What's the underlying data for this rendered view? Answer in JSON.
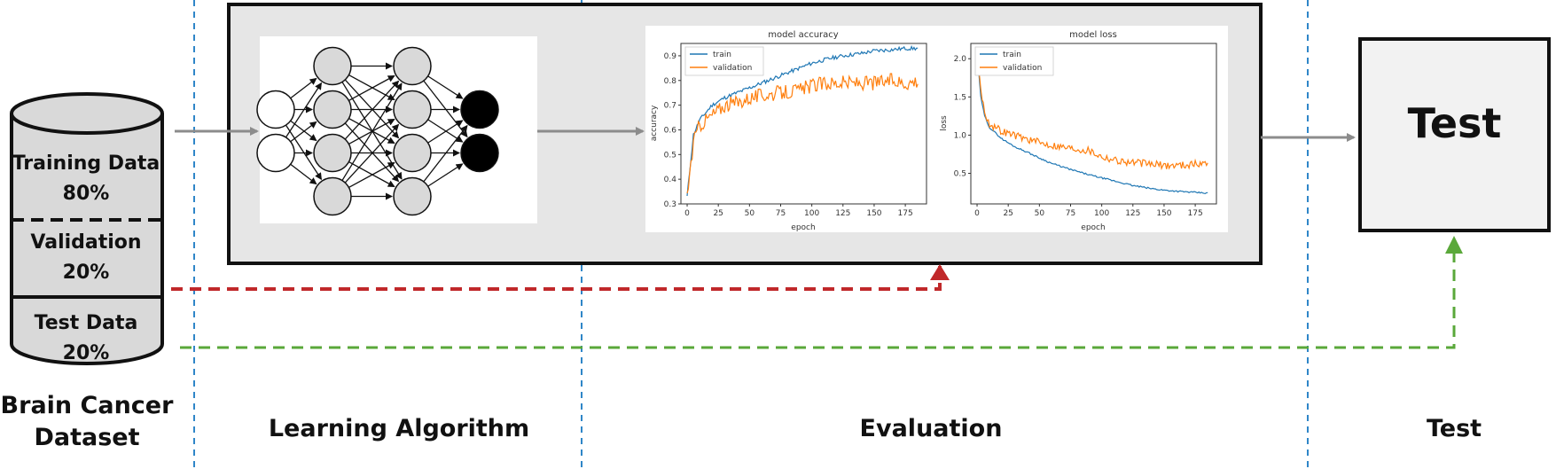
{
  "dataset": {
    "segments": [
      {
        "name": "Training Data",
        "pct": "80%"
      },
      {
        "name": "Validation",
        "pct": "20%"
      },
      {
        "name": "Test Data",
        "pct": "20%"
      }
    ],
    "caption_line1": "Brain Cancer",
    "caption_line2": "Dataset"
  },
  "stages": {
    "learning": "Learning Algorithm",
    "evaluation": "Evaluation",
    "test": "Test"
  },
  "test_box": {
    "title": "Test"
  },
  "colors": {
    "flow_arrow": "#8c8c8c",
    "validation_path": "#c0282a",
    "test_path": "#5aa83a",
    "stage_divider": "#2f86c8",
    "train_series": "#1f77b4",
    "validation_series": "#ff7f0e"
  },
  "network": {
    "layers": [
      2,
      4,
      4,
      2
    ]
  },
  "chart_data": [
    {
      "type": "line",
      "title": "model accuracy",
      "xlabel": "epoch",
      "ylabel": "accuracy",
      "xlim": [
        -5,
        192
      ],
      "ylim": [
        0.3,
        0.95
      ],
      "xticks": [
        0,
        25,
        50,
        75,
        100,
        125,
        150,
        175
      ],
      "yticks": [
        0.3,
        0.4,
        0.5,
        0.6,
        0.7,
        0.8,
        0.9
      ],
      "legend_position": "top-left",
      "series": [
        {
          "name": "train",
          "color": "#1f77b4",
          "points": [
            [
              0,
              0.33
            ],
            [
              5,
              0.58
            ],
            [
              10,
              0.64
            ],
            [
              20,
              0.7
            ],
            [
              30,
              0.73
            ],
            [
              40,
              0.75
            ],
            [
              50,
              0.77
            ],
            [
              60,
              0.79
            ],
            [
              75,
              0.82
            ],
            [
              90,
              0.85
            ],
            [
              100,
              0.87
            ],
            [
              115,
              0.89
            ],
            [
              125,
              0.9
            ],
            [
              140,
              0.91
            ],
            [
              150,
              0.92
            ],
            [
              165,
              0.925
            ],
            [
              175,
              0.93
            ],
            [
              185,
              0.93
            ]
          ],
          "noise": 0.008
        },
        {
          "name": "validation",
          "color": "#ff7f0e",
          "points": [
            [
              0,
              0.33
            ],
            [
              5,
              0.55
            ],
            [
              10,
              0.62
            ],
            [
              20,
              0.66
            ],
            [
              30,
              0.7
            ],
            [
              40,
              0.71
            ],
            [
              50,
              0.73
            ],
            [
              60,
              0.74
            ],
            [
              75,
              0.75
            ],
            [
              90,
              0.76
            ],
            [
              100,
              0.78
            ],
            [
              115,
              0.79
            ],
            [
              125,
              0.79
            ],
            [
              140,
              0.79
            ],
            [
              150,
              0.79
            ],
            [
              165,
              0.8
            ],
            [
              175,
              0.79
            ],
            [
              185,
              0.8
            ]
          ],
          "noise": 0.03
        }
      ]
    },
    {
      "type": "line",
      "title": "model loss",
      "xlabel": "epoch",
      "ylabel": "loss",
      "xlim": [
        -5,
        192
      ],
      "ylim": [
        0.1,
        2.2
      ],
      "xticks": [
        0,
        25,
        50,
        75,
        100,
        125,
        150,
        175
      ],
      "yticks": [
        0.5,
        1.0,
        1.5,
        2.0
      ],
      "legend_position": "top-left",
      "series": [
        {
          "name": "train",
          "color": "#1f77b4",
          "points": [
            [
              0,
              2.1
            ],
            [
              3,
              1.5
            ],
            [
              6,
              1.25
            ],
            [
              10,
              1.1
            ],
            [
              20,
              0.95
            ],
            [
              30,
              0.85
            ],
            [
              40,
              0.78
            ],
            [
              50,
              0.7
            ],
            [
              60,
              0.63
            ],
            [
              75,
              0.55
            ],
            [
              90,
              0.48
            ],
            [
              100,
              0.44
            ],
            [
              115,
              0.38
            ],
            [
              125,
              0.34
            ],
            [
              140,
              0.3
            ],
            [
              150,
              0.28
            ],
            [
              165,
              0.26
            ],
            [
              175,
              0.25
            ],
            [
              185,
              0.24
            ]
          ],
          "noise": 0.01
        },
        {
          "name": "validation",
          "color": "#ff7f0e",
          "points": [
            [
              0,
              2.0
            ],
            [
              3,
              1.6
            ],
            [
              6,
              1.3
            ],
            [
              10,
              1.15
            ],
            [
              20,
              1.05
            ],
            [
              30,
              1.0
            ],
            [
              40,
              0.95
            ],
            [
              50,
              0.9
            ],
            [
              60,
              0.87
            ],
            [
              75,
              0.83
            ],
            [
              90,
              0.8
            ],
            [
              100,
              0.72
            ],
            [
              115,
              0.66
            ],
            [
              125,
              0.64
            ],
            [
              140,
              0.62
            ],
            [
              150,
              0.6
            ],
            [
              165,
              0.61
            ],
            [
              175,
              0.62
            ],
            [
              185,
              0.63
            ]
          ],
          "noise": 0.05
        }
      ]
    }
  ]
}
